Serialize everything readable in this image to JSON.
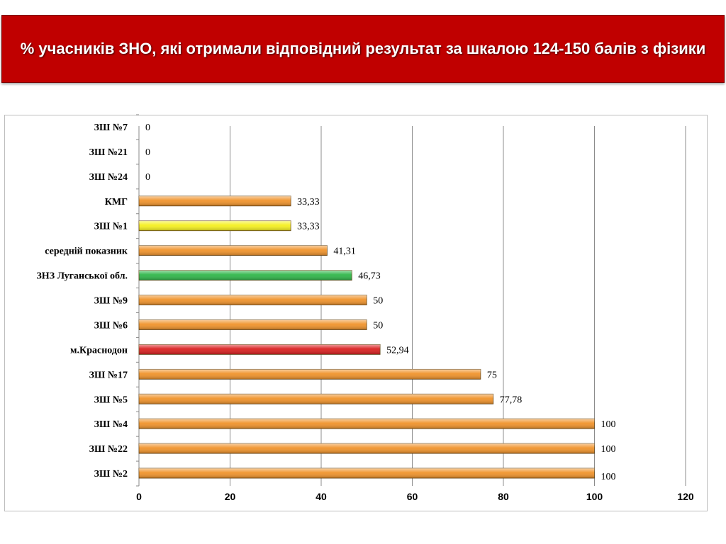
{
  "header": {
    "title": "% учасників ЗНО, які отримали відповідний результат за шкалою 124-150 балів з фізики"
  },
  "chart_data": {
    "type": "bar",
    "orientation": "horizontal",
    "title": "% учасників ЗНО, які отримали відповідний результат за шкалою 124-150 балів з фізики",
    "categories": [
      "ЗШ №7",
      "ЗШ №21",
      "ЗШ №24",
      "КМГ",
      "ЗШ №1",
      "середній показник",
      "ЗНЗ Луганської обл.",
      "ЗШ №9",
      "ЗШ №6",
      "м.Краснодон",
      "ЗШ №17",
      "ЗШ №5",
      "ЗШ №4",
      "ЗШ №22",
      "ЗШ №2"
    ],
    "values": [
      0,
      0,
      0,
      33.33,
      33.33,
      41.31,
      46.73,
      50,
      50,
      52.94,
      75,
      77.78,
      100,
      100,
      100
    ],
    "value_labels": [
      "0",
      "0",
      "0",
      "33,33",
      "33,33",
      "41,31",
      "46,73",
      "50",
      "50",
      "52,94",
      "75",
      "77,78",
      "100",
      "100",
      "100"
    ],
    "bar_colors": [
      "#f0932b",
      "#f0932b",
      "#f0932b",
      "#f0932b",
      "#f5f020",
      "#f0932b",
      "#2fb64a",
      "#f0932b",
      "#f0932b",
      "#d92020",
      "#f0932b",
      "#f0932b",
      "#f0932b",
      "#f0932b",
      "#f0932b"
    ],
    "xlim": [
      0,
      120
    ],
    "xticks": [
      0,
      20,
      40,
      60,
      80,
      100,
      120
    ],
    "grid": true,
    "xlabel": "",
    "ylabel": ""
  }
}
